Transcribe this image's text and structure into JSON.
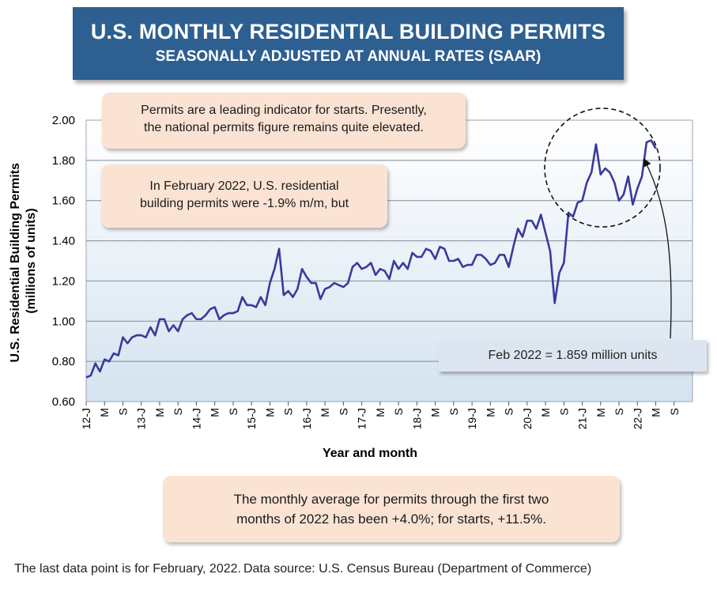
{
  "title": "U.S. MONTHLY RESIDENTIAL BUILDING PERMITS",
  "subtitle": "SEASONALLY ADJUSTED AT ANNUAL RATES (SAAR)",
  "callouts": {
    "leading_line1": "Permits are a leading indicator for starts. Presently,",
    "leading_line2": "the national permits figure remains quite elevated.",
    "feb_line1": "In February 2022, U.S. residential",
    "feb_line2": "building permits were -1.9% m/m, but",
    "avg_line1": "The monthly average for permits through the first two",
    "avg_line2": "months of 2022 has been +4.0%;  for starts, +11.5%.",
    "last_point": "Feb 2022 = 1.859 million units"
  },
  "footer": {
    "last_data": "The last data point is for February, 2022.",
    "source": "Data source: U.S. Census Bureau (Department of Commerce)"
  },
  "colors": {
    "title_bg": "#2e5f91",
    "line": "#3a3a9c",
    "plot_bg_top": "#ffffff",
    "plot_bg_bottom": "#d4e3f0",
    "callout_bg": "#fbe3d3",
    "info_box_bg": "#dde6f0"
  },
  "chart_data": {
    "type": "line",
    "title": "U.S. MONTHLY RESIDENTIAL BUILDING PERMITS",
    "subtitle": "SEASONALLY ADJUSTED AT ANNUAL RATES (SAAR)",
    "xlabel": "Year and month",
    "ylabel_line1": "U.S. Residential Building Permits",
    "ylabel_line2": "(millions of units)",
    "ylim": [
      0.6,
      2.0
    ],
    "yticks": [
      0.6,
      0.8,
      1.0,
      1.2,
      1.4,
      1.6,
      1.8,
      2.0
    ],
    "ytick_labels": [
      "0.60",
      "0.80",
      "1.00",
      "1.20",
      "1.40",
      "1.60",
      "1.80",
      "2.00"
    ],
    "x_start": "2012-01",
    "x_end": "2022-12",
    "x_tick_labels": [
      "12-J",
      "M",
      "S",
      "13-J",
      "M",
      "S",
      "14-J",
      "M",
      "S",
      "15-J",
      "M",
      "S",
      "16-J",
      "M",
      "S",
      "17-J",
      "M",
      "S",
      "18-J",
      "M",
      "S",
      "19-J",
      "M",
      "S",
      "20-J",
      "M",
      "S",
      "21-J",
      "M",
      "S",
      "22-J",
      "M",
      "S"
    ],
    "grid": "horizontal",
    "legend": "none",
    "series": [
      {
        "values": [
          0.72,
          0.73,
          0.79,
          0.75,
          0.81,
          0.8,
          0.84,
          0.83,
          0.92,
          0.89,
          0.92,
          0.93,
          0.93,
          0.92,
          0.97,
          0.93,
          1.01,
          1.01,
          0.95,
          0.98,
          0.95,
          1.01,
          1.03,
          1.04,
          1.01,
          1.01,
          1.03,
          1.06,
          1.07,
          1.01,
          1.03,
          1.04,
          1.04,
          1.05,
          1.12,
          1.08,
          1.08,
          1.07,
          1.12,
          1.08,
          1.19,
          1.26,
          1.36,
          1.13,
          1.15,
          1.12,
          1.16,
          1.26,
          1.22,
          1.19,
          1.19,
          1.11,
          1.16,
          1.17,
          1.19,
          1.18,
          1.17,
          1.19,
          1.27,
          1.29,
          1.26,
          1.27,
          1.29,
          1.23,
          1.26,
          1.25,
          1.21,
          1.3,
          1.26,
          1.29,
          1.26,
          1.34,
          1.32,
          1.32,
          1.36,
          1.35,
          1.31,
          1.37,
          1.36,
          1.3,
          1.3,
          1.31,
          1.27,
          1.28,
          1.28,
          1.33,
          1.33,
          1.31,
          1.28,
          1.29,
          1.33,
          1.33,
          1.27,
          1.37,
          1.46,
          1.42,
          1.5,
          1.5,
          1.46,
          1.53,
          1.44,
          1.35,
          1.09,
          1.24,
          1.29,
          1.54,
          1.52,
          1.59,
          1.6,
          1.69,
          1.74,
          1.88,
          1.73,
          1.76,
          1.74,
          1.69,
          1.6,
          1.63,
          1.72,
          1.58,
          1.66,
          1.72,
          1.89,
          1.9,
          1.859
        ]
      }
    ],
    "annotations": {
      "circle_highlight": "recent peak period 2021-2022",
      "last_point_label": "Feb 2022 = 1.859 million units"
    }
  }
}
